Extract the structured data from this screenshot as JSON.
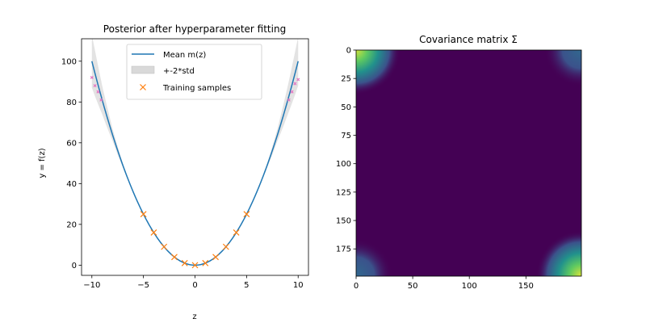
{
  "chart_data": [
    {
      "type": "line",
      "title": "Posterior after hyperparameter fitting",
      "xlabel": "z",
      "ylabel": "y = f(z)",
      "xlim": [
        -11,
        11
      ],
      "ylim": [
        -5,
        111
      ],
      "xticks": [
        -10,
        -5,
        0,
        5,
        10
      ],
      "yticks": [
        0,
        20,
        40,
        60,
        80,
        100
      ],
      "grid": false,
      "legend_position": "top-center",
      "legend": [
        "Mean m(z)",
        "+-2*std",
        "Training samples"
      ],
      "series": [
        {
          "name": "Mean m(z)",
          "kind": "line",
          "function": "z^2",
          "domain": [
            -10,
            10
          ],
          "color": "#1f77b4"
        },
        {
          "name": "+-2*std",
          "kind": "band",
          "color": "#d9d9d9",
          "half_width": {
            "z": [
              -10,
              -9,
              -8,
              -7,
              -6,
              -5,
              5,
              6,
              7,
              8,
              9,
              10
            ],
            "std2": [
              13,
              7,
              3,
              1,
              0.3,
              0,
              0,
              0.3,
              1,
              3,
              7,
              12
            ]
          }
        },
        {
          "name": "Training samples",
          "kind": "scatter",
          "marker": "x",
          "color": "#ff7f0e",
          "x": [
            -5,
            -4,
            -3,
            -2,
            -1,
            0,
            1,
            2,
            3,
            4,
            5
          ],
          "y": [
            25,
            16,
            9,
            4,
            1,
            0,
            1,
            4,
            9,
            16,
            25
          ]
        },
        {
          "name": "Test points",
          "kind": "scatter",
          "marker": "x",
          "color": "#e377c2",
          "x": [
            -10,
            -9.7,
            -9.4,
            -9.1,
            9.1,
            9.4,
            9.7,
            10
          ],
          "y": [
            92,
            88,
            85,
            81,
            81,
            85,
            89,
            91
          ]
        }
      ]
    },
    {
      "type": "heatmap",
      "title": "Covariance matrix Σ",
      "size": 200,
      "xlim": [
        0,
        199
      ],
      "ylim": [
        199,
        0
      ],
      "xticks": [
        0,
        50,
        100,
        150
      ],
      "yticks": [
        0,
        25,
        50,
        75,
        100,
        125,
        150,
        175
      ],
      "colormap": "viridis",
      "description_values": {
        "corner_high": 1.0,
        "off_diagonal_corner": 0.4,
        "background": 0.0
      }
    }
  ]
}
